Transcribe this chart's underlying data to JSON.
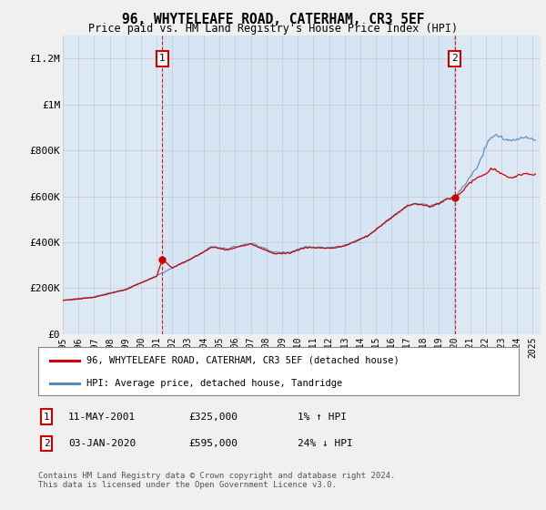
{
  "title": "96, WHYTELEAFE ROAD, CATERHAM, CR3 5EF",
  "subtitle": "Price paid vs. HM Land Registry's House Price Index (HPI)",
  "bg_color": "#f0f0f0",
  "plot_bg_color": "#dce9f5",
  "ylabel_ticks": [
    "£0",
    "£200K",
    "£400K",
    "£600K",
    "£800K",
    "£1M",
    "£1.2M"
  ],
  "ytick_vals": [
    0,
    200000,
    400000,
    600000,
    800000,
    1000000,
    1200000
  ],
  "ylim": [
    0,
    1300000
  ],
  "xlim_start": 1995.0,
  "xlim_end": 2025.5,
  "sale1_x": 2001.36,
  "sale1_y": 325000,
  "sale1_label": "1",
  "sale1_date": "11-MAY-2001",
  "sale1_price": "£325,000",
  "sale1_hpi": "1% ↑ HPI",
  "sale2_x": 2020.01,
  "sale2_y": 595000,
  "sale2_label": "2",
  "sale2_date": "03-JAN-2020",
  "sale2_price": "£595,000",
  "sale2_hpi": "24% ↓ HPI",
  "legend_line1": "96, WHYTELEAFE ROAD, CATERHAM, CR3 5EF (detached house)",
  "legend_line2": "HPI: Average price, detached house, Tandridge",
  "footnote": "Contains HM Land Registry data © Crown copyright and database right 2024.\nThis data is licensed under the Open Government Licence v3.0.",
  "hpi_color": "#5588bb",
  "sale_line_color": "#cc0000",
  "marker_box_color": "#cc0000",
  "xticks": [
    1995,
    1996,
    1997,
    1998,
    1999,
    2000,
    2001,
    2002,
    2003,
    2004,
    2005,
    2006,
    2007,
    2008,
    2009,
    2010,
    2011,
    2012,
    2013,
    2014,
    2015,
    2016,
    2017,
    2018,
    2019,
    2020,
    2021,
    2022,
    2023,
    2024,
    2025
  ]
}
